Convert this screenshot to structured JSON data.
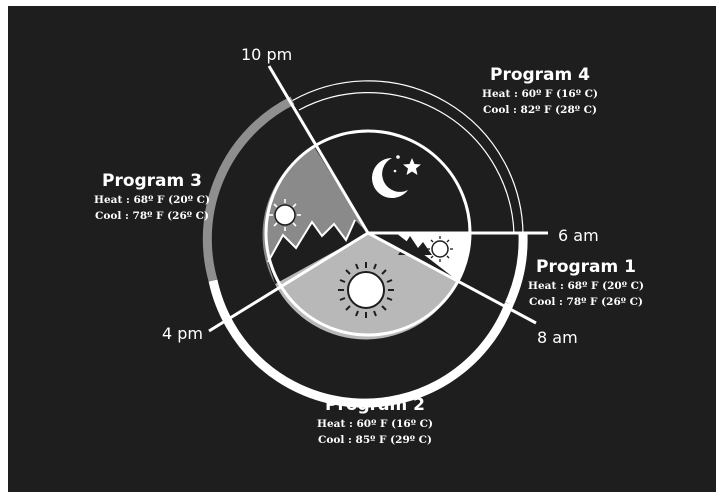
{
  "times": {
    "t6am": "6 am",
    "t8am": "8 am",
    "t4pm": "4 pm",
    "t10pm": "10 pm"
  },
  "programs": [
    {
      "title": "Program 1",
      "heat": "Heat : 68º F (20º C)",
      "cool": "Cool : 78º F (26º C)"
    },
    {
      "title": "Program 2",
      "heat": "Heat : 60º F (16º C)",
      "cool": "Cool : 85º F (29º C)"
    },
    {
      "title": "Program 3",
      "heat": "Heat : 68º F (20º C)",
      "cool": "Cool : 78º F (26º C)"
    },
    {
      "title": "Program 4",
      "heat": "Heat : 60º F (16º C)",
      "cool": "Cool : 82º F (28º C)"
    }
  ],
  "colors": {
    "background": "#1e1e1e",
    "night": "#1e1e1e",
    "evening": "#8a8a8a",
    "day": "#b8b8b8",
    "morning": "#ffffff",
    "ring_light": "#ffffff",
    "ring_dark": "#8f8f8f"
  },
  "icons": [
    "moon-icon",
    "star-icon",
    "sun-icon",
    "mountain-icon"
  ]
}
